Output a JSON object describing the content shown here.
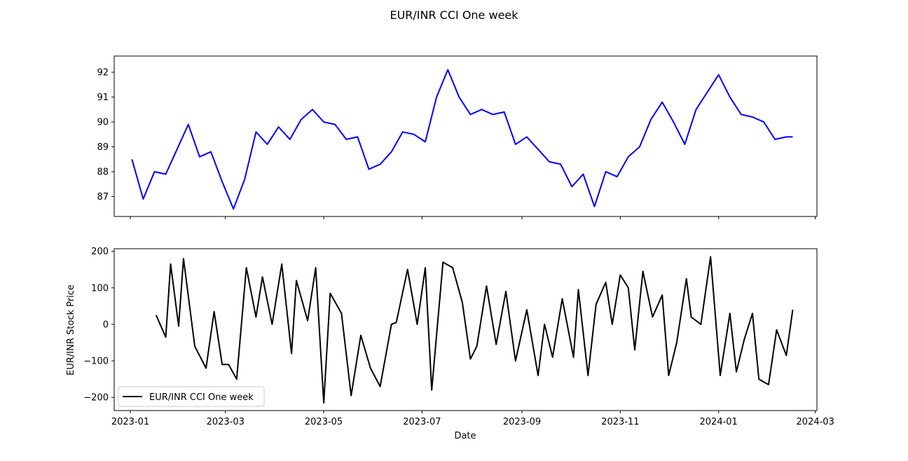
{
  "chart_data": [
    {
      "type": "line",
      "title": "EUR/INR CCI One week",
      "xlabel": "",
      "ylabel": "",
      "x_ticks": [
        "2023-01",
        "2023-03",
        "2023-05",
        "2023-07",
        "2023-09",
        "2023-11",
        "2024-01",
        "2024-03"
      ],
      "y_ticks": [
        "87",
        "88",
        "89",
        "90",
        "91",
        "92"
      ],
      "xlim": [
        "2022-12-22",
        "2024-03-02"
      ],
      "ylim": [
        86.2,
        92.65
      ],
      "grid": false,
      "series": [
        {
          "color": "#0000ff",
          "x": [
            "2023-01-02",
            "2023-01-09",
            "2023-01-16",
            "2023-01-23",
            "2023-01-30",
            "2023-02-06",
            "2023-02-13",
            "2023-02-20",
            "2023-02-27",
            "2023-03-06",
            "2023-03-13",
            "2023-03-20",
            "2023-03-27",
            "2023-04-03",
            "2023-04-10",
            "2023-04-17",
            "2023-04-24",
            "2023-05-01",
            "2023-05-08",
            "2023-05-15",
            "2023-05-22",
            "2023-05-29",
            "2023-06-05",
            "2023-06-12",
            "2023-06-19",
            "2023-06-26",
            "2023-07-03",
            "2023-07-10",
            "2023-07-17",
            "2023-07-24",
            "2023-07-31",
            "2023-08-07",
            "2023-08-14",
            "2023-08-21",
            "2023-08-28",
            "2023-09-04",
            "2023-09-11",
            "2023-09-18",
            "2023-09-25",
            "2023-10-02",
            "2023-10-09",
            "2023-10-16",
            "2023-10-23",
            "2023-10-30",
            "2023-11-06",
            "2023-11-13",
            "2023-11-20",
            "2023-11-27",
            "2023-12-04",
            "2023-12-11",
            "2023-12-18",
            "2023-12-25",
            "2024-01-01",
            "2024-01-08",
            "2024-01-15",
            "2024-01-22",
            "2024-01-29",
            "2024-02-05",
            "2024-02-12",
            "2024-02-16"
          ],
          "values": [
            88.5,
            86.9,
            88.0,
            87.9,
            88.9,
            89.9,
            88.6,
            88.8,
            87.6,
            86.5,
            87.7,
            89.6,
            89.1,
            89.8,
            89.3,
            90.1,
            90.5,
            90.0,
            89.9,
            89.3,
            89.4,
            88.1,
            88.3,
            88.8,
            89.6,
            89.5,
            89.2,
            91.0,
            92.1,
            91.0,
            90.3,
            90.5,
            90.3,
            90.4,
            89.1,
            89.4,
            88.9,
            88.4,
            88.3,
            87.4,
            87.9,
            86.6,
            88.0,
            87.8,
            88.6,
            89.0,
            90.1,
            90.8,
            90.0,
            89.1,
            90.5,
            91.2,
            91.9,
            91.0,
            90.3,
            90.2,
            90.0,
            89.3,
            89.4,
            89.4
          ]
        }
      ]
    },
    {
      "type": "line",
      "title": "",
      "xlabel": "Date",
      "ylabel": "EUR/INR Stock Price",
      "x_ticks": [
        "2023-01",
        "2023-03",
        "2023-05",
        "2023-07",
        "2023-09",
        "2023-11",
        "2024-01",
        "2024-03"
      ],
      "y_ticks": [
        "−200",
        "−100",
        "0",
        "100",
        "200"
      ],
      "xlim": [
        "2022-12-22",
        "2024-03-02"
      ],
      "ylim": [
        -236,
        207
      ],
      "grid": false,
      "legend": "lower-left",
      "series": [
        {
          "name": "EUR/INR CCI One week",
          "color": "#000000",
          "x": [
            "2023-01-17",
            "2023-01-23",
            "2023-01-26",
            "2023-01-31",
            "2023-02-03",
            "2023-02-10",
            "2023-02-17",
            "2023-02-22",
            "2023-02-27",
            "2023-03-03",
            "2023-03-08",
            "2023-03-14",
            "2023-03-20",
            "2023-03-24",
            "2023-03-30",
            "2023-04-05",
            "2023-04-11",
            "2023-04-14",
            "2023-04-21",
            "2023-04-26",
            "2023-05-01",
            "2023-05-05",
            "2023-05-12",
            "2023-05-18",
            "2023-05-24",
            "2023-05-30",
            "2023-06-05",
            "2023-06-12",
            "2023-06-15",
            "2023-06-22",
            "2023-06-28",
            "2023-07-03",
            "2023-07-07",
            "2023-07-14",
            "2023-07-20",
            "2023-07-26",
            "2023-07-31",
            "2023-08-04",
            "2023-08-10",
            "2023-08-16",
            "2023-08-22",
            "2023-08-28",
            "2023-09-04",
            "2023-09-11",
            "2023-09-15",
            "2023-09-20",
            "2023-09-26",
            "2023-10-03",
            "2023-10-06",
            "2023-10-12",
            "2023-10-17",
            "2023-10-23",
            "2023-10-27",
            "2023-11-01",
            "2023-11-06",
            "2023-11-10",
            "2023-11-15",
            "2023-11-21",
            "2023-11-27",
            "2023-12-01",
            "2023-12-06",
            "2023-12-12",
            "2023-12-15",
            "2023-12-21",
            "2023-12-27",
            "2024-01-02",
            "2024-01-08",
            "2024-01-12",
            "2024-01-17",
            "2024-01-22",
            "2024-01-26",
            "2024-02-01",
            "2024-02-06",
            "2024-02-12",
            "2024-02-16"
          ],
          "values": [
            25,
            -35,
            165,
            -5,
            180,
            -60,
            -120,
            35,
            -110,
            -110,
            -150,
            155,
            20,
            130,
            0,
            165,
            -80,
            120,
            10,
            155,
            -215,
            85,
            30,
            -195,
            -30,
            -120,
            -170,
            0,
            5,
            150,
            0,
            155,
            -180,
            170,
            155,
            60,
            -95,
            -60,
            105,
            -55,
            90,
            -100,
            40,
            -140,
            0,
            -90,
            70,
            -90,
            95,
            -140,
            55,
            115,
            0,
            135,
            100,
            -70,
            145,
            20,
            80,
            -140,
            -50,
            125,
            20,
            0,
            185,
            -140,
            30,
            -130,
            -40,
            30,
            -150,
            -165,
            -15,
            -85,
            40
          ]
        }
      ]
    }
  ]
}
